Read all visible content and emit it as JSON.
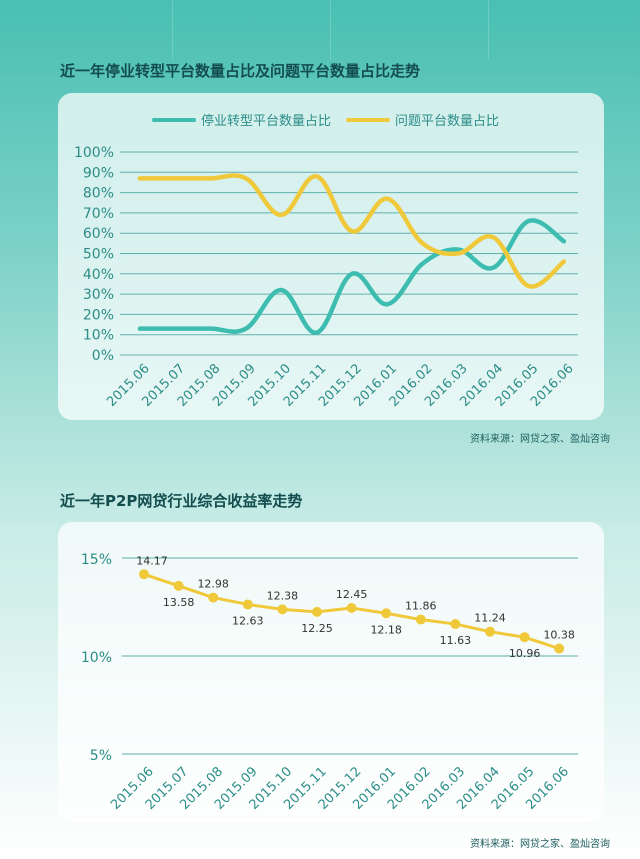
{
  "chart1_title": "近一年停业转型平台数量占比及问题平台数量占比走势",
  "chart2_title": "近一年P2P网贷行业综合收益率走势",
  "source1": "资料来源：网贷之家、盈灿咨询",
  "source2": "资料来源：网贷之家、盈灿咨询",
  "colors": {
    "teal": "#3dbcb0",
    "yellow": "#f0c93a",
    "axis": "#3a9a95",
    "tick": "#2c8d88"
  },
  "chart_data": [
    {
      "type": "line",
      "title": "",
      "categories": [
        "2015.06",
        "2015.07",
        "2015.08",
        "2015.09",
        "2015.10",
        "2015.11",
        "2015.12",
        "2016.01",
        "2016.02",
        "2016.03",
        "2016.04",
        "2016.05",
        "2016.06"
      ],
      "ylim": [
        0,
        100
      ],
      "yticks": [
        "0%",
        "10%",
        "20%",
        "30%",
        "40%",
        "50%",
        "60%",
        "70%",
        "80%",
        "90%",
        "100%"
      ],
      "legend_position": "top",
      "grid": true,
      "series": [
        {
          "name": "停业转型平台数量占比",
          "color": "#3dbcb0",
          "values": [
            13,
            13,
            13,
            13,
            32,
            11,
            40,
            25,
            45,
            52,
            43,
            66,
            56
          ]
        },
        {
          "name": "问题平台数量占比",
          "color": "#f0c93a",
          "values": [
            87,
            87,
            87,
            87,
            69,
            88,
            61,
            77,
            55,
            50,
            58,
            34,
            46
          ]
        }
      ]
    },
    {
      "type": "line",
      "title": "",
      "categories": [
        "2015.06",
        "2015.07",
        "2015.08",
        "2015.09",
        "2015.10",
        "2015.11",
        "2015.12",
        "2016.01",
        "2016.02",
        "2016.03",
        "2016.04",
        "2016.05",
        "2016.06"
      ],
      "ylim": [
        5,
        15
      ],
      "yticks": [
        "5%",
        "10%",
        "15%"
      ],
      "grid": true,
      "series": [
        {
          "name": "",
          "color": "#f0c93a",
          "values": [
            14.17,
            13.58,
            12.98,
            12.63,
            12.38,
            12.25,
            12.45,
            12.18,
            11.86,
            11.63,
            11.24,
            10.96,
            10.38
          ]
        }
      ],
      "data_labels": [
        "14.17",
        "13.58",
        "12.98",
        "12.63",
        "12.38",
        "12.25",
        "12.45",
        "12.18",
        "11.86",
        "11.63",
        "11.24",
        "10.96",
        "10.38"
      ]
    }
  ]
}
